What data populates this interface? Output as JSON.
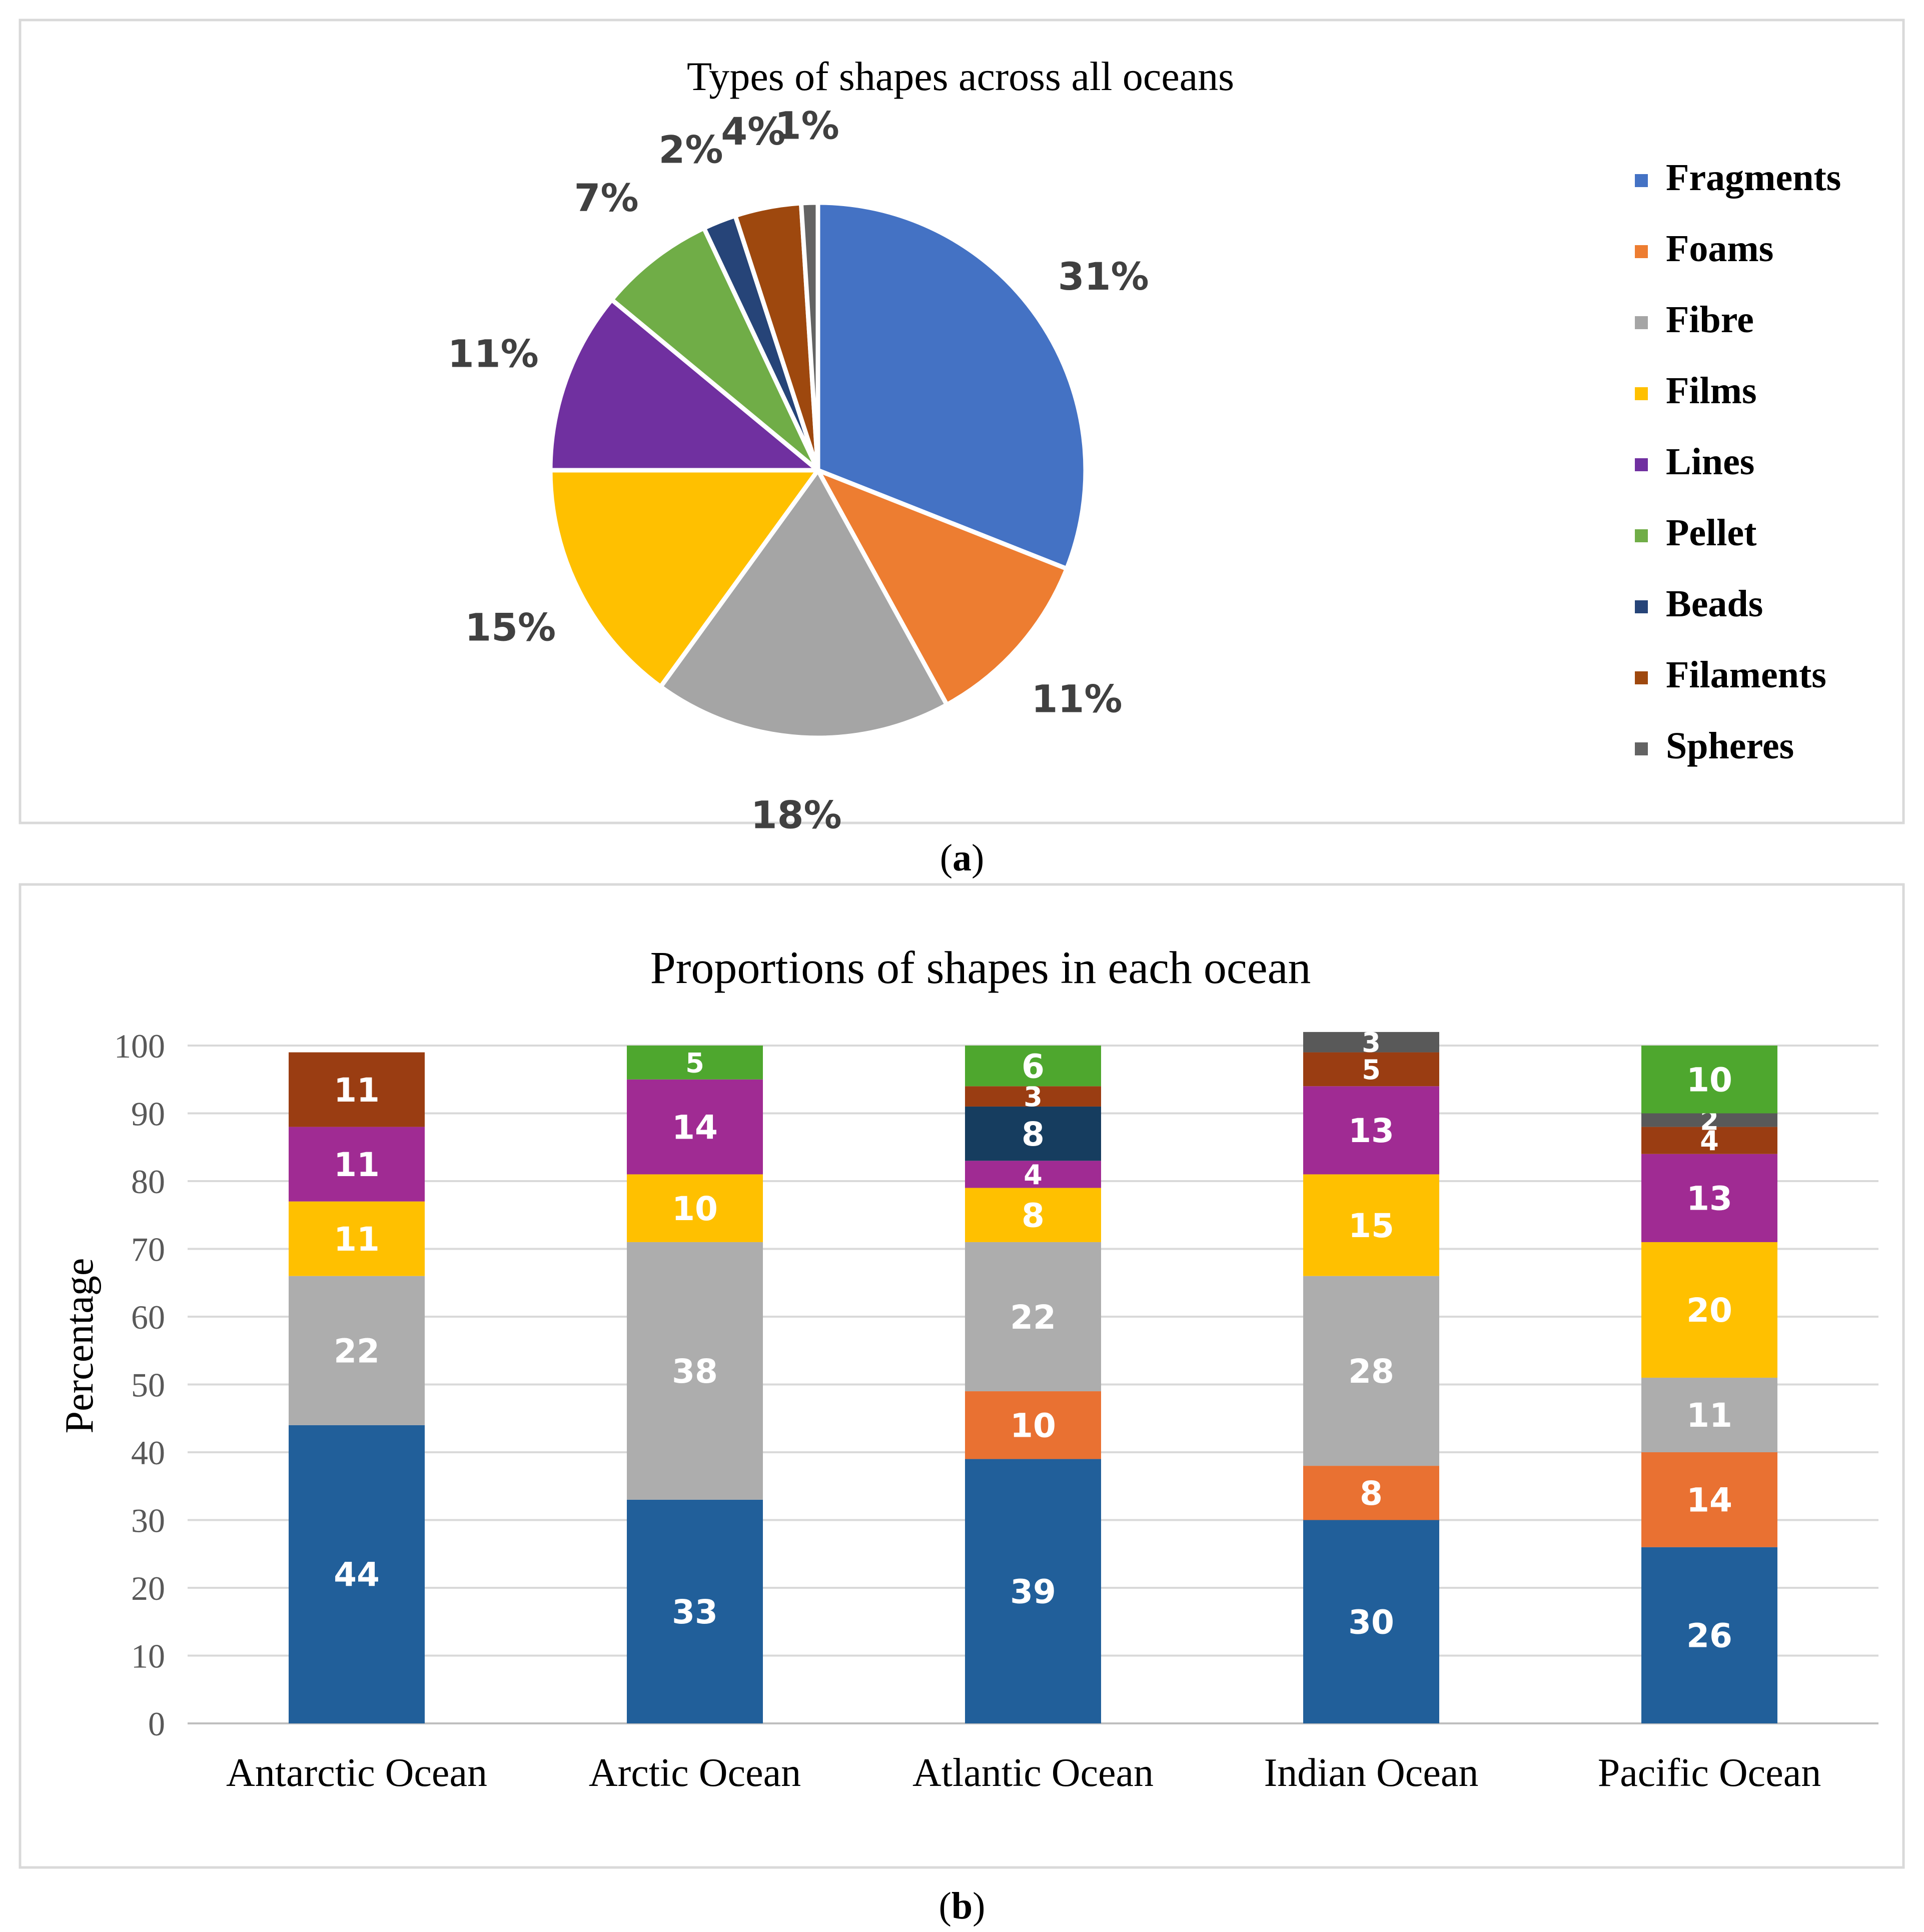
{
  "panel_a": {
    "caption_letter": "a",
    "caption_paren_open": "(",
    "caption_paren_close": ")"
  },
  "panel_b": {
    "caption_letter": "b",
    "caption_paren_open": "(",
    "caption_paren_close": ")"
  },
  "chart_data": [
    {
      "type": "pie",
      "title": "Types of shapes across all oceans",
      "legend_position": "right",
      "slices": [
        {
          "label": "Fragments",
          "value": 31,
          "display": "31%",
          "color": "#4472C4"
        },
        {
          "label": "Foams",
          "value": 11,
          "display": "11%",
          "color": "#ED7D31"
        },
        {
          "label": "Fibre",
          "value": 18,
          "display": "18%",
          "color": "#A5A5A5"
        },
        {
          "label": "Films",
          "value": 15,
          "display": "15%",
          "color": "#FFC000"
        },
        {
          "label": "Lines",
          "value": 11,
          "display": "11%",
          "color": "#7030A0"
        },
        {
          "label": "Pellet",
          "value": 7,
          "display": "7%",
          "color": "#70AD47"
        },
        {
          "label": "Beads",
          "value": 2,
          "display": "2%",
          "color": "#264478"
        },
        {
          "label": "Filaments",
          "value": 4,
          "display": "4%",
          "color": "#9E480E"
        },
        {
          "label": "Spheres",
          "value": 1,
          "display": "1%",
          "color": "#636363"
        }
      ]
    },
    {
      "type": "bar",
      "stacked": true,
      "title": "Proportions of shapes in each ocean",
      "ylabel": "Percentage",
      "xlabel": "",
      "ylim": [
        0,
        100
      ],
      "yticks": [
        0,
        10,
        20,
        30,
        40,
        50,
        60,
        70,
        80,
        90,
        100
      ],
      "grid": true,
      "categories": [
        "Antarctic Ocean",
        "Arctic Ocean",
        "Atlantic Ocean",
        "Indian Ocean",
        "Pacific Ocean"
      ],
      "series": [
        {
          "name": "Fragments",
          "color": "#215F9A",
          "values": [
            44,
            33,
            39,
            30,
            26
          ]
        },
        {
          "name": "Foams",
          "color": "#E97132",
          "values": [
            0,
            0,
            10,
            8,
            14
          ]
        },
        {
          "name": "Fibre",
          "color": "#ADADAD",
          "values": [
            22,
            38,
            22,
            28,
            11
          ]
        },
        {
          "name": "Films",
          "color": "#FFC000",
          "values": [
            11,
            10,
            8,
            15,
            20
          ]
        },
        {
          "name": "Lines",
          "color": "#A02B93",
          "values": [
            11,
            14,
            4,
            13,
            13
          ]
        },
        {
          "name": "Beads",
          "color": "#163D5F",
          "values": [
            0,
            0,
            8,
            0,
            0
          ]
        },
        {
          "name": "Filaments",
          "color": "#9A3D12",
          "values": [
            11,
            0,
            3,
            5,
            4
          ]
        },
        {
          "name": "Spheres",
          "color": "#595959",
          "values": [
            0,
            0,
            0,
            3,
            2
          ]
        },
        {
          "name": "Pellet",
          "color": "#4EA72E",
          "values": [
            0,
            5,
            6,
            0,
            10
          ]
        }
      ]
    }
  ]
}
